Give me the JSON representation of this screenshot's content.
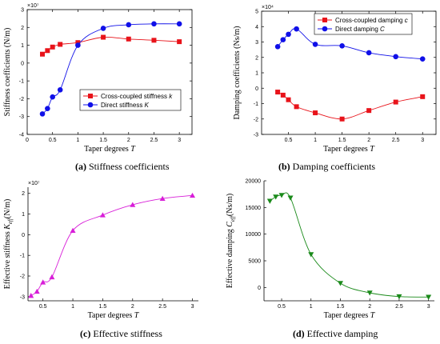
{
  "captions": [
    {
      "letter": "(a)",
      "text": "Stiffness coefficients"
    },
    {
      "letter": "(b)",
      "text": "Damping coefficients"
    },
    {
      "letter": "(c)",
      "text": "Effective stiffness"
    },
    {
      "letter": "(d)",
      "text": "Effective damping"
    }
  ],
  "chart_data": [
    {
      "type": "line",
      "xlabel": "Taper degrees T",
      "ylabel": "Stiffness coefficients (N/m)",
      "exponent": "×10⁷",
      "xlim": [
        0,
        3.25
      ],
      "ylim": [
        -4,
        3
      ],
      "xticks": [
        0,
        0.5,
        1,
        1.5,
        2,
        2.5,
        3
      ],
      "yticks": [
        -4,
        -3,
        -2,
        -1,
        0,
        1,
        2,
        3
      ],
      "legend_position": "center-right",
      "series": [
        {
          "name": "Cross-coupled stiffness k",
          "color": "#e8131a",
          "marker": "square",
          "x": [
            0.3,
            0.4,
            0.5,
            0.65,
            1,
            1.5,
            2,
            2.5,
            3
          ],
          "y": [
            0.5,
            0.7,
            0.9,
            1.05,
            1.15,
            1.45,
            1.35,
            1.28,
            1.2
          ]
        },
        {
          "name": "Direct stiffness K",
          "color": "#1010e8",
          "marker": "circle",
          "x": [
            0.3,
            0.4,
            0.5,
            0.65,
            1,
            1.5,
            2,
            2.5,
            3
          ],
          "y": [
            -2.85,
            -2.55,
            -1.9,
            -1.5,
            1.0,
            1.95,
            2.15,
            2.2,
            2.2
          ]
        }
      ]
    },
    {
      "type": "line",
      "xlabel": "Taper degrees T",
      "ylabel": "Damping coefficients (Ns/m)",
      "exponent": "×10⁴",
      "xlim": [
        0,
        3.25
      ],
      "ylim": [
        -3,
        5
      ],
      "xticks": [
        0.5,
        1,
        1.5,
        2,
        2.5,
        3
      ],
      "yticks": [
        -3,
        -2,
        -1,
        0,
        1,
        2,
        3,
        4,
        5
      ],
      "legend_position": "top-right",
      "series": [
        {
          "name": "Cross-coupled damping c",
          "color": "#e8131a",
          "marker": "square",
          "x": [
            0.3,
            0.4,
            0.5,
            0.65,
            1,
            1.5,
            2,
            2.5,
            3
          ],
          "y": [
            -0.25,
            -0.45,
            -0.75,
            -1.2,
            -1.6,
            -2.0,
            -1.45,
            -0.9,
            -0.55
          ]
        },
        {
          "name": "Direct damping C",
          "color": "#1010e8",
          "marker": "circle",
          "x": [
            0.3,
            0.4,
            0.5,
            0.65,
            1,
            1.5,
            2,
            2.5,
            3
          ],
          "y": [
            2.7,
            3.15,
            3.5,
            3.85,
            2.85,
            2.75,
            2.3,
            2.05,
            1.9
          ]
        }
      ]
    },
    {
      "type": "line",
      "xlabel": "Taper degrees T",
      "ylabel": "Effective stiffness K_eff (N/m)",
      "ylabel_main": "Effective stiffness K",
      "ylabel_sub": "eff",
      "ylabel_unit": "(N/m)",
      "exponent": "×10⁷",
      "xlim": [
        0.25,
        3.1
      ],
      "ylim": [
        -3.2,
        2.3
      ],
      "xticks": [
        0.5,
        1,
        1.5,
        2,
        2.5,
        3
      ],
      "yticks": [
        -3,
        -2,
        -1,
        0,
        1,
        2
      ],
      "series": [
        {
          "name": "",
          "color": "#d81ed8",
          "marker": "triangle-up",
          "x": [
            0.3,
            0.4,
            0.5,
            0.65,
            1,
            1.5,
            2,
            2.5,
            3
          ],
          "y": [
            -2.95,
            -2.75,
            -2.3,
            -2.05,
            0.2,
            0.95,
            1.45,
            1.75,
            1.9
          ]
        }
      ]
    },
    {
      "type": "line",
      "xlabel": "Taper degrees T",
      "ylabel": "Effective damping C_eff (Ns/m)",
      "ylabel_main": "Effective damping C",
      "ylabel_sub": "eff",
      "ylabel_unit": "(Ns/m)",
      "xlim": [
        0.2,
        3.1
      ],
      "ylim": [
        -2500,
        20000
      ],
      "xticks": [
        0.5,
        1,
        1.5,
        2,
        2.5,
        3
      ],
      "yticks": [
        0,
        5000,
        10000,
        15000,
        20000
      ],
      "series": [
        {
          "name": "",
          "color": "#1a8a1a",
          "marker": "triangle-down",
          "x": [
            0.3,
            0.4,
            0.5,
            0.65,
            1,
            1.5,
            2,
            2.5,
            3
          ],
          "y": [
            16200,
            17000,
            17300,
            16800,
            6200,
            800,
            -1000,
            -1700,
            -1800
          ]
        }
      ]
    }
  ]
}
